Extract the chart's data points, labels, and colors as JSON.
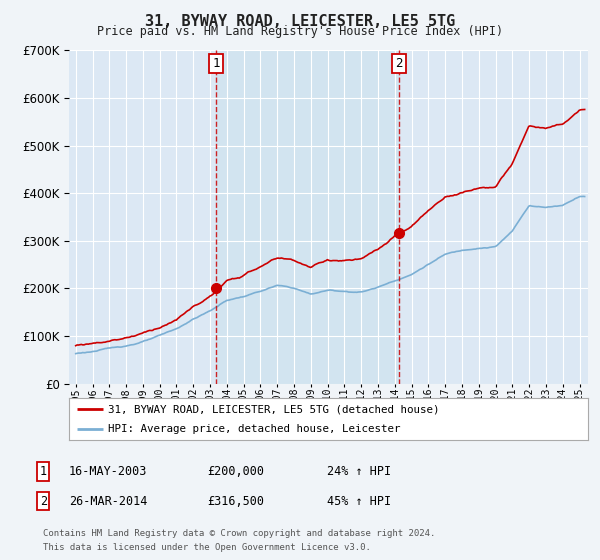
{
  "title": "31, BYWAY ROAD, LEICESTER, LE5 5TG",
  "subtitle": "Price paid vs. HM Land Registry's House Price Index (HPI)",
  "ylim": [
    0,
    700000
  ],
  "xlim_start": 1994.6,
  "xlim_end": 2025.5,
  "sale1_year": 2003.37,
  "sale1_price": 200000,
  "sale1_label": "1",
  "sale1_date": "16-MAY-2003",
  "sale1_hpi_pct": "24%",
  "sale2_year": 2014.23,
  "sale2_price": 316500,
  "sale2_label": "2",
  "sale2_date": "26-MAR-2014",
  "sale2_hpi_pct": "45%",
  "red_line_color": "#cc0000",
  "blue_line_color": "#7bafd4",
  "dashed_line_color": "#cc0000",
  "shade_color": "#d0e4f0",
  "legend_label_red": "31, BYWAY ROAD, LEICESTER, LE5 5TG (detached house)",
  "legend_label_blue": "HPI: Average price, detached house, Leicester",
  "footer1": "Contains HM Land Registry data © Crown copyright and database right 2024.",
  "footer2": "This data is licensed under the Open Government Licence v3.0.",
  "bg_color": "#f0f4f8",
  "plot_bg_color": "#dce8f4",
  "grid_color": "#ffffff"
}
